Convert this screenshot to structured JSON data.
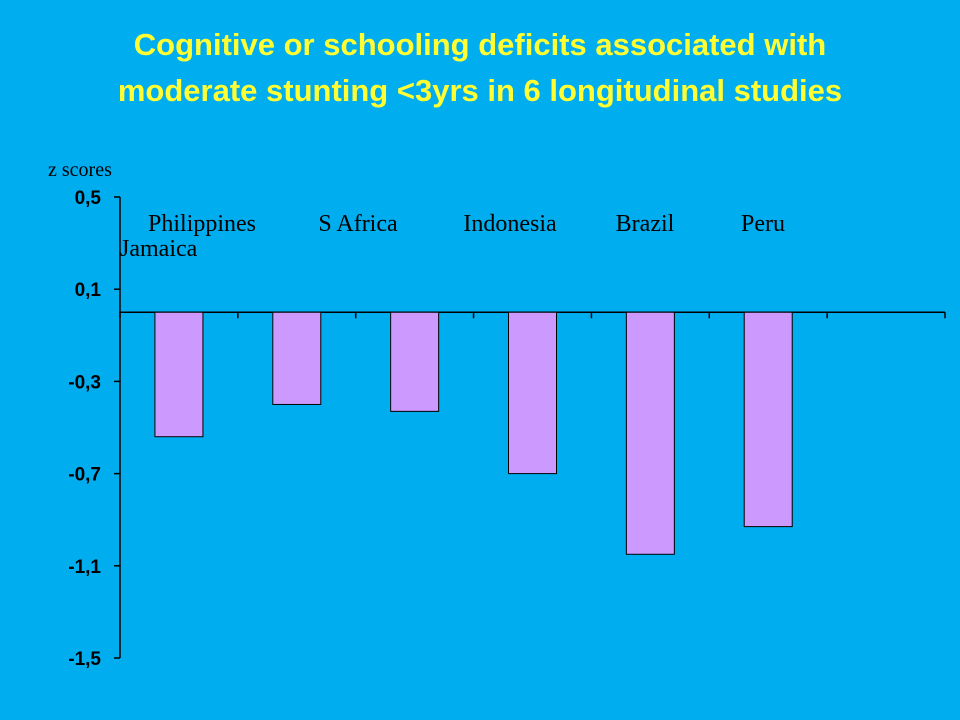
{
  "title_lines": [
    "Cognitive or schooling deficits associated with",
    "moderate stunting <3yrs in  6 longitudinal studies"
  ],
  "colors": {
    "background": "#00adef",
    "title": "#ffff33",
    "bar_fill": "#cc99ff",
    "bar_stroke": "#000000",
    "axis": "#000000"
  },
  "chart_data": {
    "type": "bar",
    "ylabel": "z  scores",
    "ylim": [
      -1.5,
      0.5
    ],
    "yticks": [
      "0,5",
      "0,1",
      "-0,3",
      "-0,7",
      "-1,1",
      "-1,5"
    ],
    "ytick_values": [
      0.5,
      0.1,
      -0.3,
      -0.7,
      -1.1,
      -1.5
    ],
    "baseline": 0,
    "categories": [
      "Jamaica",
      "Philippines",
      "S Africa",
      "Indonesia",
      "Brazil",
      "Peru"
    ],
    "values": [
      -0.54,
      -0.4,
      -0.43,
      -0.7,
      -1.05,
      -0.93
    ],
    "grid": false
  }
}
